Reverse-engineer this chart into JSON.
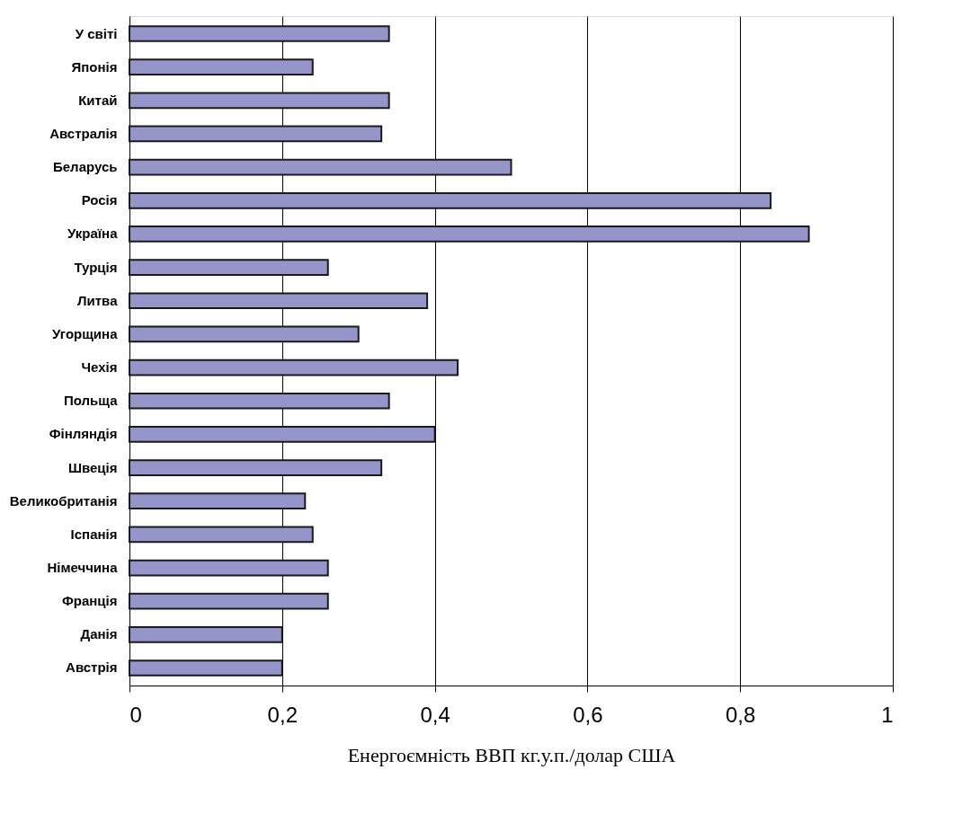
{
  "chart_data": {
    "type": "bar",
    "orientation": "horizontal",
    "categories": [
      "У світі",
      "Японія",
      "Китай",
      "Австралія",
      "Беларусь",
      "Росія",
      "Україна",
      "Турція",
      "Литва",
      "Угорщина",
      "Чехія",
      "Польща",
      "Фінляндія",
      "Швеція",
      "Великобританія",
      "Іспанія",
      "Німеччина",
      "Франція",
      "Данія",
      "Австрія"
    ],
    "values": [
      0.34,
      0.24,
      0.34,
      0.33,
      0.5,
      0.84,
      0.89,
      0.26,
      0.39,
      0.3,
      0.43,
      0.34,
      0.4,
      0.33,
      0.23,
      0.24,
      0.26,
      0.26,
      0.2,
      0.2
    ],
    "color": "#9595c9",
    "xlabel": "Енергоємність ВВП кг.у.п./долар США",
    "xlim": [
      0,
      1
    ],
    "xticks": [
      0,
      {
        "value": 0.2,
        "label": "0,2"
      },
      {
        "value": 0.4,
        "label": "0,4"
      },
      {
        "value": 0.6,
        "label": "0,6"
      },
      {
        "value": 0.8,
        "label": "0,8"
      },
      1
    ],
    "grid": "x"
  }
}
